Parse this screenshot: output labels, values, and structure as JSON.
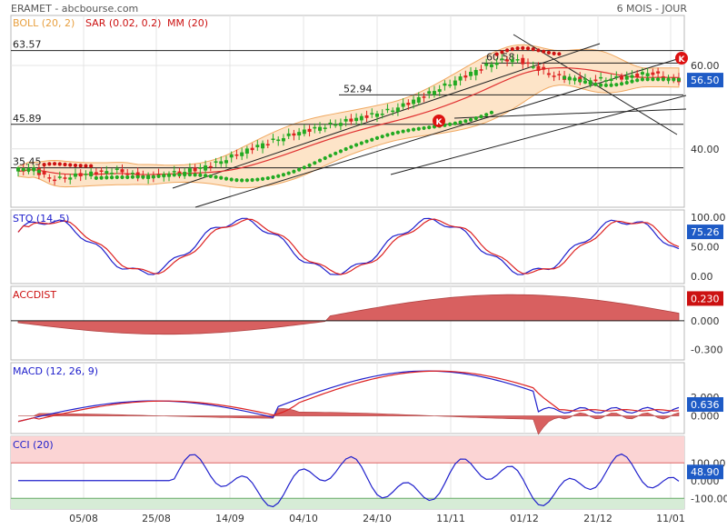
{
  "header": {
    "title": "ERAMET - abcbourse.com",
    "period": "6 MOIS - JOUR"
  },
  "indicators": {
    "boll": "BOLL (20, 2)",
    "sar": "SAR (0.02, 0.2)",
    "mm": "MM (20)"
  },
  "colors": {
    "up": "#22aa22",
    "down": "#dd2222",
    "boll_fill": "#fde4c8",
    "boll_line": "#f0a860",
    "mm": "#e03030",
    "sar": "#22aa22",
    "sar_down": "#cc1111",
    "stoch_k": "#2020cc",
    "stoch_d": "#dd2222",
    "accdist": "#d86060",
    "macd": "#2020cc",
    "signal": "#dd2222",
    "hist": "#d86060",
    "cci": "#2020cc",
    "price_badge": "#1e5bc6",
    "acc_badge": "#cc1111",
    "cci_over": "#fbd4d4",
    "cci_under": "#d6ecd6"
  },
  "chart_data": {
    "type": "candlestick",
    "x_ticks": [
      "05/08",
      "25/08",
      "14/09",
      "04/10",
      "24/10",
      "11/11",
      "01/12",
      "21/12",
      "11/01"
    ],
    "close_series": [
      34.6,
      34.9,
      35.4,
      35.1,
      34.2,
      33.6,
      33.0,
      32.8,
      32.9,
      33.2,
      33.4,
      33.6,
      33.8,
      34.0,
      34.2,
      34.3,
      34.4,
      34.6,
      34.7,
      34.8,
      34.6,
      34.2,
      33.8,
      33.6,
      33.4,
      33.4,
      33.5,
      33.6,
      33.8,
      34.0,
      34.2,
      34.4,
      34.6,
      34.9,
      35.1,
      35.4,
      35.8,
      36.2,
      36.6,
      37.1,
      37.6,
      38.2,
      38.7,
      39.2,
      39.7,
      40.2,
      40.7,
      41.2,
      41.6,
      42.0,
      42.4,
      42.8,
      43.2,
      43.6,
      44.0,
      44.3,
      44.6,
      44.9,
      45.2,
      45.5,
      45.8,
      46.1,
      46.4,
      46.7,
      47.0,
      47.3,
      47.6,
      47.9,
      48.2,
      48.5,
      48.8,
      49.1,
      49.5,
      50.0,
      50.5,
      51.0,
      51.6,
      52.2,
      52.8,
      53.4,
      54.0,
      54.6,
      55.2,
      55.8,
      56.4,
      57.0,
      57.6,
      58.2,
      58.8,
      59.4,
      60.0,
      60.5,
      60.9,
      61.2,
      61.4,
      61.4,
      61.2,
      60.8,
      60.3,
      59.7,
      59.1,
      58.5,
      58.0,
      57.5,
      57.2,
      57.0,
      56.8,
      56.7,
      56.6,
      56.5,
      56.5,
      56.6,
      56.7,
      56.8,
      56.9,
      57.0,
      57.1,
      57.3,
      57.5,
      57.7,
      58.0,
      58.3,
      58.0,
      57.6,
      57.2,
      56.8,
      56.6,
      56.5
    ],
    "price_axis": {
      "min": 26,
      "max": 72,
      "ticks": [
        40.0,
        60.0
      ]
    },
    "price_levels": [
      63.57,
      60.58,
      52.94,
      45.89,
      35.45
    ],
    "last_price": "56.50",
    "ticks": {
      "price": [
        "60.00",
        "40.00"
      ],
      "stoch": [
        "100.00",
        "50.00",
        "0.00"
      ],
      "accdist": [
        "0.000",
        "-0.300"
      ],
      "macd": [
        "2.000",
        "0.000"
      ],
      "cci": [
        "100.00",
        "0.000",
        "-100.00"
      ]
    },
    "panels": {
      "stoch": {
        "label": "STO (14, 5)",
        "value": "75.26",
        "range": [
          0,
          100
        ]
      },
      "accdist": {
        "label": "ACCDIST",
        "value": "0.230",
        "range": [
          -0.35,
          0.3
        ]
      },
      "macd": {
        "label": "MACD (12, 26, 9)",
        "value": "0.636",
        "range": [
          -1.5,
          5.3
        ]
      },
      "cci": {
        "label": "CCI (20)",
        "value": "48.90",
        "range": [
          -160,
          250
        ]
      }
    }
  }
}
